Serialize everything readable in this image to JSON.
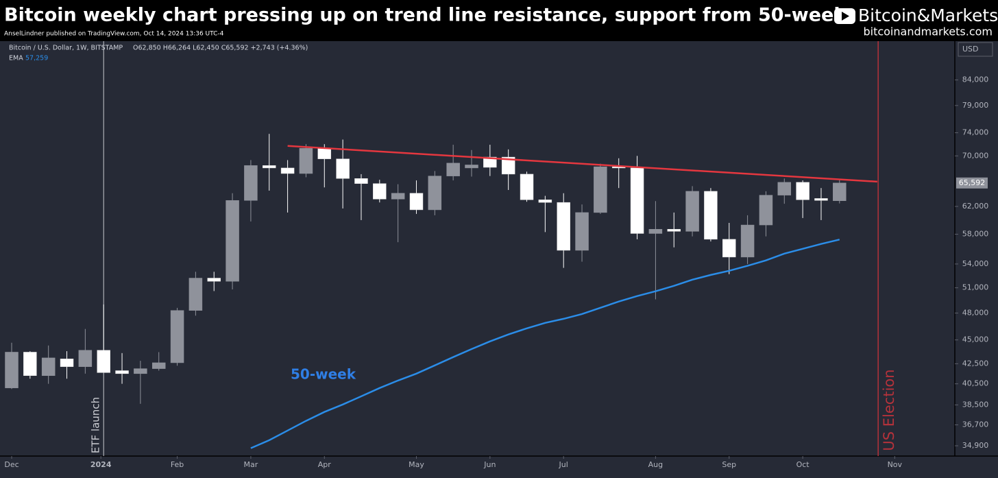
{
  "chart_data": {
    "type": "candlestick",
    "title": "Bitcoin weekly chart pressing up on trend line resistance, support from 50-week",
    "subtitle": "AnselLindner published on TradingView.com, Oct 14, 2024 13:36 UTC-4",
    "brand": "Bitcoin&Markets",
    "website": "bitcoinandmarkets.com",
    "currency": "USD",
    "ohlc_text": "O62,850 H66,264 L62,450 C65,592 +2,743 (+4.36%)",
    "last_price_label": "65,592",
    "log_scale": true,
    "categories": [
      null,
      null,
      null,
      null,
      null,
      null,
      null,
      null,
      null,
      null,
      null,
      null,
      null,
      null,
      null,
      null,
      null,
      null,
      null,
      null,
      null,
      null,
      null,
      null,
      null,
      null,
      null,
      null,
      null,
      null,
      null,
      null,
      null,
      null,
      null,
      null,
      null,
      null,
      null,
      null,
      null,
      null,
      null,
      null,
      null,
      null
    ],
    "series": [
      {
        "name": "Bitcoin / U.S. Dollar, 1W, BITSTAMP",
        "up_color": "#8f929b",
        "down_color": "#ffffff",
        "open": [
          40100,
          43700,
          41300,
          43000,
          42200,
          43900,
          41800,
          41500,
          42000,
          42600,
          48300,
          52200,
          51800,
          62900,
          68400,
          68000,
          67100,
          71300,
          69500,
          66300,
          65500,
          63100,
          64000,
          61500,
          66700,
          68000,
          69800,
          69800,
          67000,
          63000,
          62600,
          55800,
          61100,
          68200,
          68000,
          58100,
          58700,
          58400,
          64300,
          57300,
          54900,
          59300,
          63700,
          65700,
          63200,
          62850
        ],
        "high": [
          44700,
          43800,
          44400,
          43800,
          46200,
          49000,
          43600,
          42800,
          43700,
          48600,
          53000,
          53000,
          64000,
          69300,
          73800,
          69300,
          72000,
          72000,
          72800,
          67000,
          66100,
          65400,
          66000,
          67500,
          71900,
          71000,
          71900,
          71100,
          67400,
          63600,
          64000,
          62300,
          68700,
          69600,
          70000,
          62800,
          61100,
          65100,
          64800,
          59600,
          60700,
          64300,
          66300,
          66000,
          64800,
          66264
        ],
        "low": [
          40000,
          41000,
          40500,
          41000,
          41500,
          41600,
          40500,
          38600,
          41800,
          42300,
          47700,
          50600,
          50800,
          59800,
          64400,
          61100,
          66500,
          64900,
          61700,
          60000,
          62600,
          56900,
          60900,
          60700,
          66000,
          66600,
          66700,
          64500,
          62700,
          58300,
          53500,
          54300,
          60900,
          64800,
          57300,
          49600,
          56200,
          57700,
          57000,
          52700,
          54000,
          57700,
          62400,
          60300,
          60000,
          62450
        ],
        "close": [
          43700,
          41300,
          43100,
          42200,
          43900,
          41600,
          41500,
          42000,
          42600,
          48300,
          52200,
          51800,
          62900,
          68400,
          68000,
          67100,
          71300,
          69500,
          66300,
          65500,
          63100,
          64000,
          61500,
          66700,
          68800,
          68500,
          68100,
          67000,
          63000,
          62600,
          55800,
          61100,
          68200,
          68000,
          58100,
          58700,
          58400,
          64300,
          57300,
          54900,
          59300,
          63700,
          65700,
          63000,
          62900,
          65592
        ]
      }
    ],
    "ema": {
      "name": "EMA",
      "value_label": "57,259",
      "label": "50-week",
      "color": "#2b8de8",
      "values": [
        null,
        null,
        null,
        null,
        null,
        null,
        null,
        null,
        null,
        null,
        null,
        null,
        null,
        34700,
        35370,
        36200,
        37050,
        37850,
        38540,
        39300,
        40090,
        40820,
        41500,
        42330,
        43180,
        44020,
        44840,
        45590,
        46270,
        46880,
        47340,
        47890,
        48610,
        49340,
        50000,
        50580,
        51240,
        52000,
        52600,
        53130,
        53760,
        54470,
        55360,
        56000,
        56660,
        57259
      ]
    },
    "trendline": {
      "x": [
        15,
        47.05
      ],
      "y": [
        71700,
        65800
      ],
      "color": "#e5373f"
    },
    "markers": [
      {
        "label": "ETF launch",
        "x": 5,
        "color": "#c9cbd1"
      },
      {
        "label": "US Election",
        "x": 47.1,
        "color": "#b5323b"
      }
    ],
    "ylim": [
      34050,
      91900
    ],
    "yticks": [
      {
        "value": 34900,
        "label": "34,900"
      },
      {
        "value": 36700,
        "label": "36,700"
      },
      {
        "value": 38500,
        "label": "38,500"
      },
      {
        "value": 40500,
        "label": "40,500"
      },
      {
        "value": 42500,
        "label": "42,500"
      },
      {
        "value": 45000,
        "label": "45,000"
      },
      {
        "value": 48000,
        "label": "48,000"
      },
      {
        "value": 51000,
        "label": "51,000"
      },
      {
        "value": 54000,
        "label": "54,000"
      },
      {
        "value": 58000,
        "label": "58,000"
      },
      {
        "value": 62000,
        "label": "62,000"
      },
      {
        "value": 70000,
        "label": "70,000"
      },
      {
        "value": 74000,
        "label": "74,000"
      },
      {
        "value": 79000,
        "label": "79,000"
      },
      {
        "value": 84000,
        "label": "84,000"
      }
    ],
    "xticks": [
      {
        "value": 0,
        "label": "Dec"
      },
      {
        "value": 4.85,
        "label": "2024"
      },
      {
        "value": 9,
        "label": "Feb"
      },
      {
        "value": 13,
        "label": "Mar"
      },
      {
        "value": 17,
        "label": "Apr"
      },
      {
        "value": 22,
        "label": "May"
      },
      {
        "value": 26,
        "label": "Jun"
      },
      {
        "value": 30,
        "label": "Jul"
      },
      {
        "value": 35,
        "label": "Aug"
      },
      {
        "value": 39,
        "label": "Sep"
      },
      {
        "value": 43,
        "label": "Oct"
      },
      {
        "value": 48,
        "label": "Nov"
      }
    ]
  }
}
